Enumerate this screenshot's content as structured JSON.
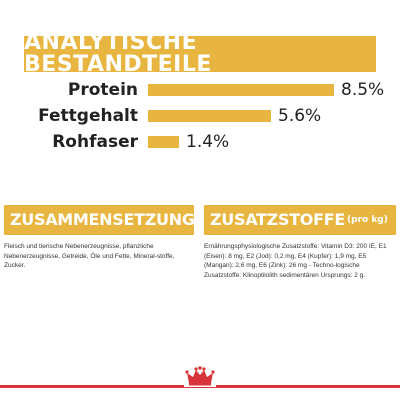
{
  "header": {
    "title": "ANALYTISCHE BESTANDTEILE"
  },
  "nutrients": [
    {
      "label": "Protein",
      "value_text": "8.5%",
      "value": 8.5
    },
    {
      "label": "Fettgehalt",
      "value_text": "5.6%",
      "value": 5.6
    },
    {
      "label": "Rohfaser",
      "value_text": "1.4%",
      "value": 1.4
    }
  ],
  "composition": {
    "title": "ZUSAMMENSETZUNG",
    "text": "Fleisch und tierische Nebenerzeugnisse, pflanzliche Nebenerzeugnisse, Getreide, Öle und Fette, Mineral-stoffe, Zucker."
  },
  "additives": {
    "title": "ZUSATZSTOFFE",
    "subtitle": "(pro kg)",
    "text": "Ernährungsphysiologische Zusatzstoffe: Vitamin D3: 200 IE, E1 (Eisen): 8 mg, E2 (Jod): 0,2 mg, E4 (Kupfer): 1,9 mg, E5 (Mangan): 2,6 mg, E6 (Zink): 26 mg - Techno-logische Zusatzstoffe: Klinoptilolith sedimentären Ursprungs: 2 g."
  },
  "colors": {
    "accent": "#e8b640",
    "brand_red": "#d9343a"
  },
  "icons": {
    "logo": "royal-canin-crown-icon"
  }
}
